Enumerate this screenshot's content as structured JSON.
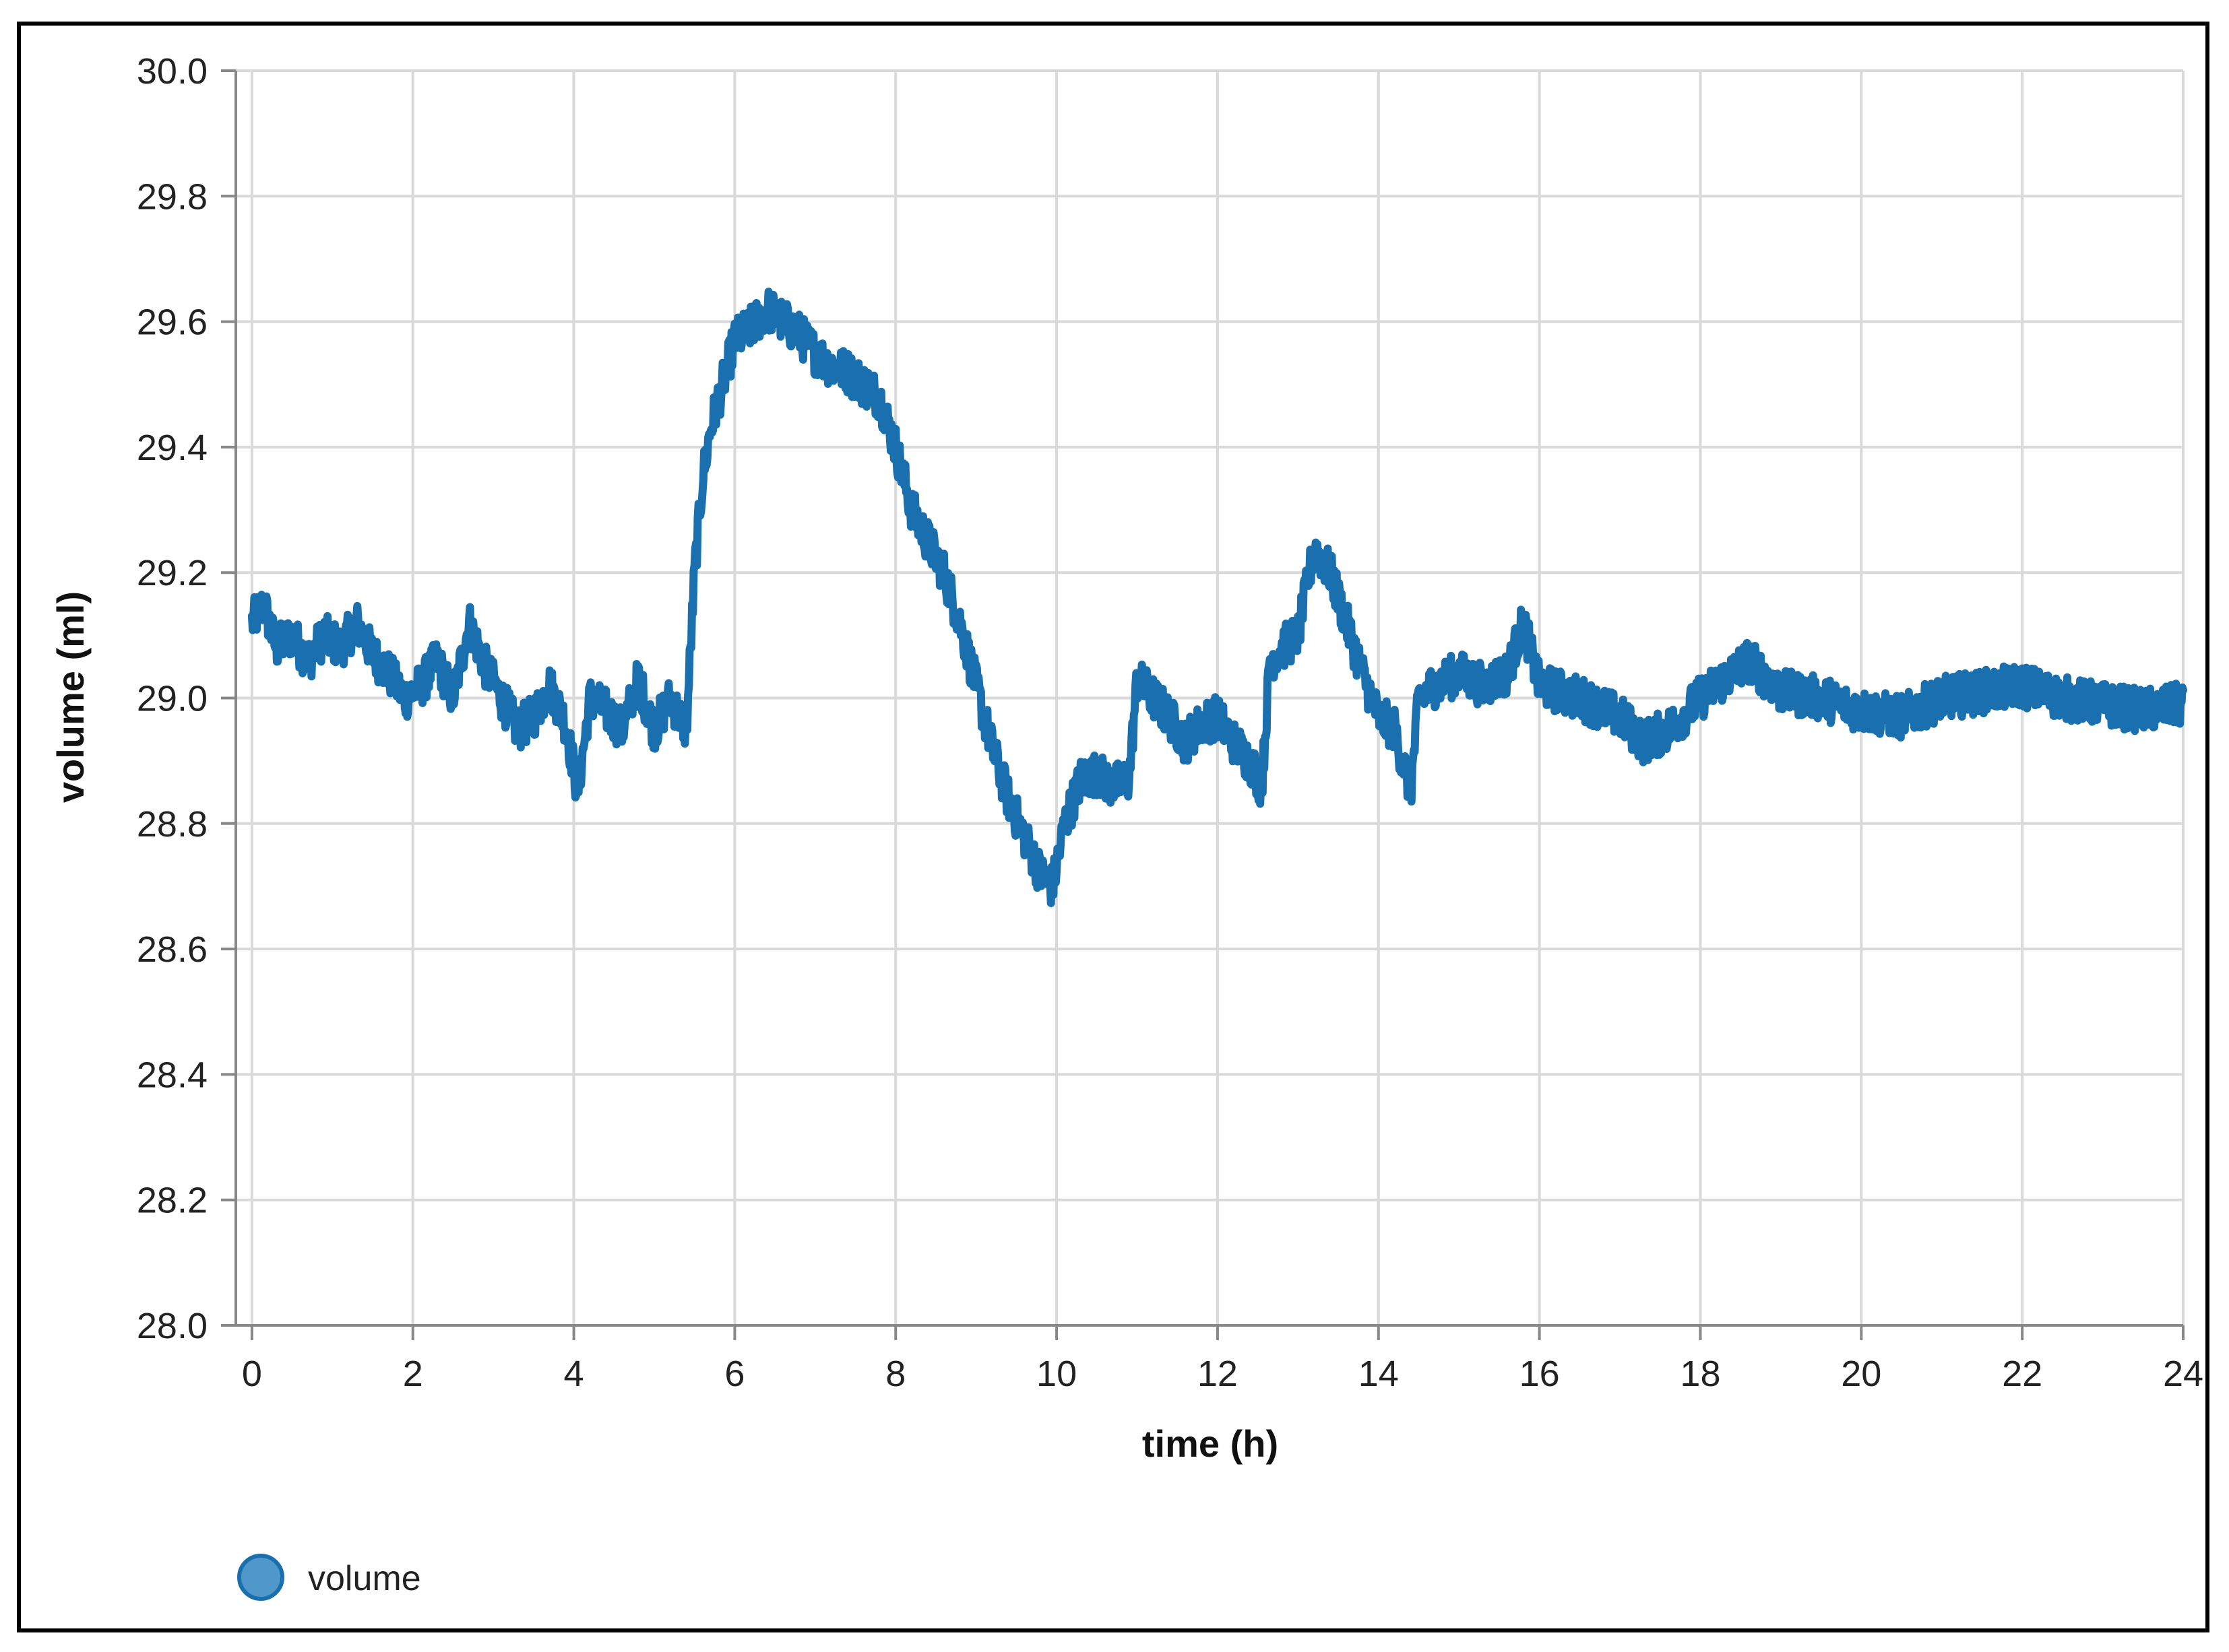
{
  "chart_data": {
    "type": "line",
    "title": "",
    "xlabel": "time (h)",
    "ylabel": "volume (ml)",
    "xlim": [
      -0.2,
      24.0
    ],
    "ylim": [
      28.0,
      30.0
    ],
    "x_ticks": [
      0,
      2,
      4,
      6,
      8,
      10,
      12,
      14,
      16,
      18,
      20,
      22,
      24
    ],
    "y_ticks": [
      "28.0",
      "28.2",
      "28.4",
      "28.6",
      "28.8",
      "29.0",
      "29.2",
      "29.4",
      "29.6",
      "29.8",
      "30.0"
    ],
    "grid": true,
    "legend": {
      "position": "bottom-left",
      "marker": "circle"
    },
    "colors": {
      "series": "#1a6fae",
      "legend_fill": "#4f98c9",
      "grid": "#d9d9d9",
      "axis": "#888888"
    },
    "series": [
      {
        "name": "volume",
        "noise": 0.035,
        "x": [
          0,
          0.15,
          0.3,
          0.5,
          0.7,
          0.9,
          1.1,
          1.3,
          1.5,
          1.7,
          1.9,
          2.1,
          2.3,
          2.5,
          2.7,
          2.9,
          3.1,
          3.3,
          3.5,
          3.7,
          3.9,
          4.05,
          4.2,
          4.4,
          4.6,
          4.8,
          5.0,
          5.2,
          5.4,
          5.5,
          5.6,
          5.7,
          5.85,
          6.0,
          6.2,
          6.4,
          6.6,
          6.8,
          7.0,
          7.2,
          7.4,
          7.6,
          7.8,
          8.0,
          8.2,
          8.4,
          8.6,
          8.8,
          9.0,
          9.2,
          9.4,
          9.6,
          9.8,
          9.95,
          10.1,
          10.3,
          10.5,
          10.7,
          10.9,
          11.0,
          11.2,
          11.4,
          11.6,
          11.8,
          12.0,
          12.2,
          12.4,
          12.55,
          12.65,
          12.8,
          13.0,
          13.2,
          13.4,
          13.6,
          13.8,
          14.0,
          14.2,
          14.4,
          14.5,
          14.7,
          15.0,
          15.3,
          15.6,
          15.8,
          16.0,
          16.5,
          17.0,
          17.3,
          17.6,
          18.0,
          18.3,
          18.6,
          19.0,
          19.5,
          20.0,
          20.5,
          21.0,
          21.5,
          22.0,
          22.5,
          23.0,
          23.5,
          24.0
        ],
        "y": [
          29.12,
          29.15,
          29.08,
          29.1,
          29.06,
          29.1,
          29.08,
          29.12,
          29.07,
          29.04,
          29.0,
          29.02,
          29.06,
          29.0,
          29.12,
          29.05,
          29.0,
          28.95,
          28.97,
          29.02,
          28.96,
          28.85,
          29.0,
          28.98,
          28.95,
          29.03,
          28.95,
          29.0,
          28.95,
          29.2,
          29.35,
          29.43,
          29.5,
          29.57,
          29.59,
          29.62,
          29.6,
          29.58,
          29.55,
          29.53,
          29.52,
          29.5,
          29.48,
          29.4,
          29.3,
          29.25,
          29.2,
          29.12,
          29.02,
          28.92,
          28.84,
          28.78,
          28.72,
          28.7,
          28.8,
          28.87,
          28.88,
          28.86,
          28.87,
          29.03,
          29.0,
          28.97,
          28.93,
          28.96,
          28.97,
          28.93,
          28.9,
          28.86,
          29.06,
          29.08,
          29.1,
          29.24,
          29.2,
          29.12,
          29.04,
          28.97,
          28.95,
          28.85,
          29.0,
          29.02,
          29.04,
          29.02,
          29.04,
          29.12,
          29.02,
          29.0,
          28.97,
          28.93,
          28.95,
          29.0,
          29.03,
          29.06,
          29.01,
          29.0,
          28.98,
          28.97,
          29.0,
          29.01,
          29.02,
          29.0,
          28.99,
          28.98,
          28.99
        ]
      }
    ]
  }
}
